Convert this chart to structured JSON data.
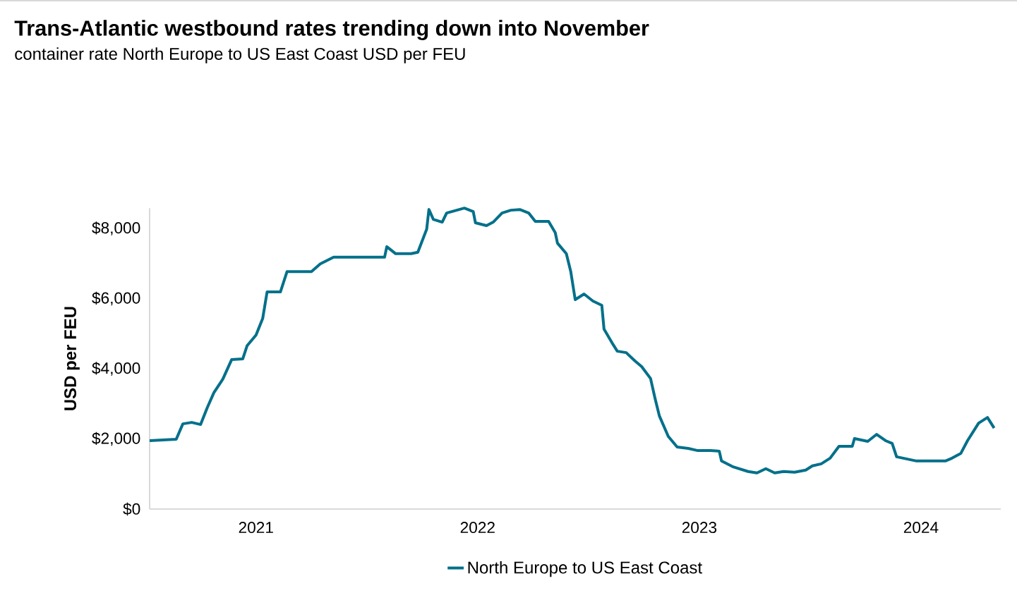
{
  "chart_data": {
    "type": "line",
    "title": "Trans-Atlantic westbound rates trending down into November",
    "subtitle": "container rate North Europe to US East Coast USD per FEU",
    "ylabel": "USD per FEU",
    "xlim": [
      2020.52,
      2024.36
    ],
    "xticks": [
      2021,
      2022,
      2023,
      2024
    ],
    "ylim": [
      0,
      8580
    ],
    "yticks": [
      {
        "value": 0,
        "label": "$0"
      },
      {
        "value": 2000,
        "label": "$2,000"
      },
      {
        "value": 4000,
        "label": "$4,000"
      },
      {
        "value": 6000,
        "label": "$6,000"
      },
      {
        "value": 8000,
        "label": "$8,000"
      }
    ],
    "grid": false,
    "legend": "bottom",
    "line_style": "solid",
    "marker": "none",
    "series": [
      {
        "name": "North Europe to US East Coast",
        "color": "#02708a",
        "x": [
          2020.52,
          2020.64,
          2020.67,
          2020.71,
          2020.75,
          2020.78,
          2020.81,
          2020.85,
          2020.89,
          2020.94,
          2020.96,
          2021.0,
          2021.03,
          2021.05,
          2021.11,
          2021.14,
          2021.25,
          2021.29,
          2021.35,
          2021.58,
          2021.59,
          2021.63,
          2021.7,
          2021.73,
          2021.77,
          2021.78,
          2021.8,
          2021.84,
          2021.86,
          2021.94,
          2021.98,
          2021.99,
          2022.04,
          2022.07,
          2022.11,
          2022.15,
          2022.19,
          2022.23,
          2022.26,
          2022.32,
          2022.35,
          2022.36,
          2022.4,
          2022.42,
          2022.44,
          2022.48,
          2022.52,
          2022.56,
          2022.57,
          2022.61,
          2022.63,
          2022.67,
          2022.71,
          2022.74,
          2022.78,
          2022.8,
          2022.82,
          2022.86,
          2022.9,
          2022.95,
          2022.99,
          2023.05,
          2023.09,
          2023.1,
          2023.15,
          2023.22,
          2023.26,
          2023.3,
          2023.34,
          2023.38,
          2023.43,
          2023.48,
          2023.51,
          2023.55,
          2023.59,
          2023.63,
          2023.69,
          2023.7,
          2023.76,
          2023.8,
          2023.84,
          2023.87,
          2023.89,
          2023.98,
          2024.11,
          2024.14,
          2024.18,
          2024.21,
          2024.26,
          2024.3,
          2024.33
        ],
        "values": [
          1950,
          1990,
          2430,
          2470,
          2410,
          2890,
          3320,
          3700,
          4260,
          4280,
          4660,
          4960,
          5430,
          6190,
          6190,
          6770,
          6770,
          6990,
          7180,
          7180,
          7480,
          7280,
          7280,
          7320,
          7980,
          8540,
          8260,
          8180,
          8440,
          8580,
          8480,
          8160,
          8080,
          8180,
          8440,
          8520,
          8540,
          8440,
          8200,
          8200,
          7880,
          7580,
          7280,
          6770,
          5970,
          6130,
          5930,
          5810,
          5130,
          4700,
          4500,
          4460,
          4220,
          4060,
          3720,
          3160,
          2650,
          2070,
          1770,
          1730,
          1670,
          1670,
          1650,
          1370,
          1210,
          1070,
          1030,
          1150,
          1030,
          1070,
          1050,
          1110,
          1230,
          1290,
          1450,
          1790,
          1790,
          2010,
          1930,
          2130,
          1950,
          1870,
          1490,
          1370,
          1370,
          1450,
          1590,
          1950,
          2450,
          2610,
          2310
        ]
      }
    ]
  }
}
